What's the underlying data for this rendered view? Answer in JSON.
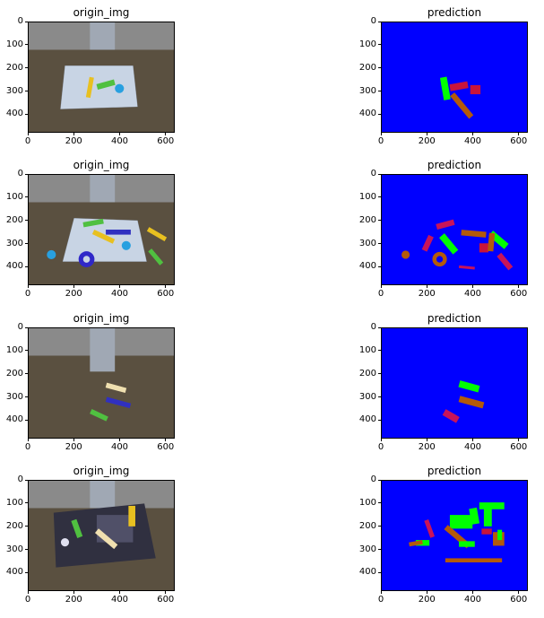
{
  "figure": {
    "rows": [
      {
        "left_title": "origin_img",
        "right_title": "prediction"
      },
      {
        "left_title": "origin_img",
        "right_title": "prediction"
      },
      {
        "left_title": "origin_img",
        "right_title": "prediction"
      },
      {
        "left_title": "origin_img",
        "right_title": "prediction"
      }
    ],
    "x_ticks": [
      "0",
      "200",
      "400",
      "600"
    ],
    "y_ticks": [
      "0",
      "100",
      "200",
      "300",
      "400"
    ],
    "colors": {
      "background_class": "#0000ff",
      "green_class": "#00ff00",
      "red_class": "#c8143c",
      "brown_class": "#b45a0a",
      "magenta_class": "#c8145a",
      "floor": "#5a5040",
      "wall": "#8a8a8a"
    }
  }
}
